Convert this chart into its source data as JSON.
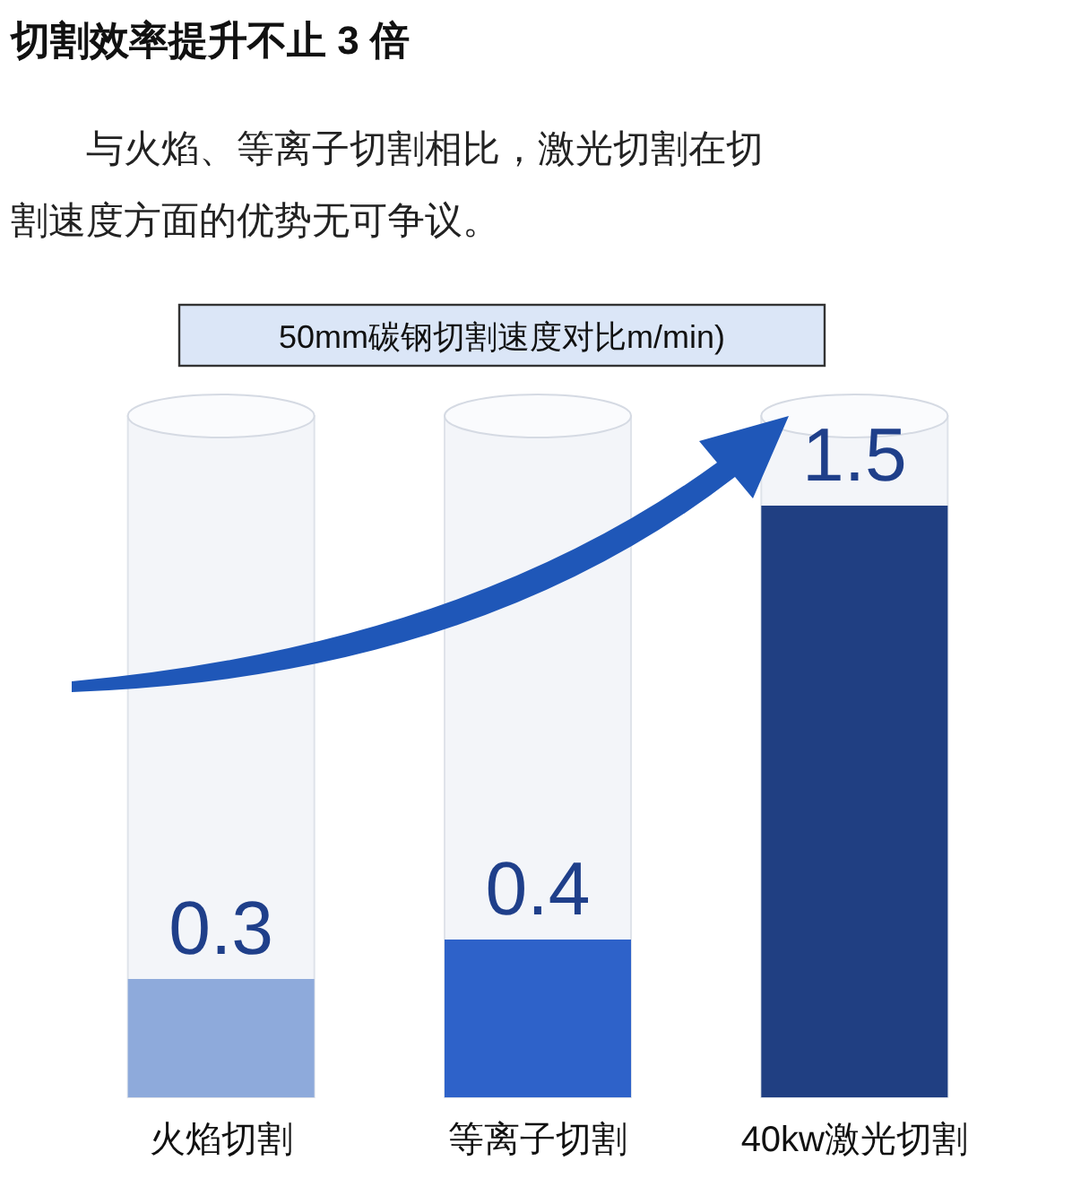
{
  "chart_data": {
    "type": "bar",
    "title": "切割效率提升不止 3 倍",
    "subtitle": "与火焰、等离子切割相比，激光切割在切割速度方面的优势无可争议。",
    "annotations": [
      "50mm碳钢切割速度对比m/min)"
    ],
    "categories": [
      "火焰切割",
      "等离子切割",
      "40kw激光切割"
    ],
    "values": [
      0.3,
      0.4,
      1.5
    ],
    "colors": [
      "#8eaadb",
      "#2e62c9",
      "#203f82"
    ],
    "data_labels": true
  }
}
